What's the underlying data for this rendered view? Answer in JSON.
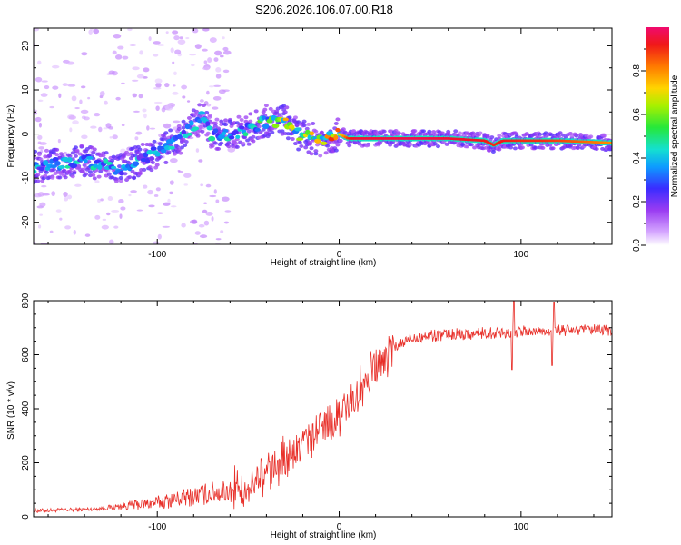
{
  "title": "S206.2026.106.07.00.R18",
  "chart_data": [
    {
      "type": "heatmap",
      "xlabel": "Height of straight line (km)",
      "ylabel": "Frequency (Hz)",
      "xlim": [
        -168,
        150
      ],
      "ylim": [
        -25,
        24
      ],
      "x_ticks": [
        "-100",
        "0",
        "100"
      ],
      "x_tick_values": [
        -100,
        0,
        100
      ],
      "y_ticks": [
        "20",
        "10",
        "0",
        "-10",
        "-20"
      ],
      "y_tick_values": [
        20,
        10,
        0,
        -10,
        -20
      ],
      "colorbar": {
        "label": "Normalized spectral amplitude",
        "ticks": [
          "0.0",
          "0.2",
          "0.4",
          "0.6",
          "0.8"
        ],
        "tick_values": [
          0.0,
          0.2,
          0.4,
          0.6,
          0.8
        ],
        "range": [
          0,
          1
        ]
      },
      "ridge": {
        "x": [
          -168,
          -140,
          -120,
          -100,
          -90,
          -80,
          -75,
          -70,
          -60,
          -50,
          -40,
          -35,
          -30,
          -25,
          -20,
          -15,
          -10,
          -5,
          0,
          5,
          10,
          20,
          40,
          60,
          80,
          85,
          90,
          100,
          110,
          120,
          150
        ],
        "y": [
          -7.5,
          -6,
          -8,
          -4,
          -2,
          2,
          4,
          0,
          0,
          1,
          3,
          2.5,
          3.5,
          0.5,
          -0.5,
          -1,
          -1.5,
          -1,
          0,
          -1,
          -1,
          -1,
          -1,
          -1,
          -1.5,
          -2.5,
          -1.5,
          -1.5,
          -1.5,
          -1.5,
          -2
        ],
        "amplitude": [
          0.35,
          0.35,
          0.35,
          0.3,
          0.35,
          0.4,
          0.45,
          0.35,
          0.4,
          0.4,
          0.45,
          0.5,
          0.6,
          0.5,
          0.55,
          0.55,
          0.6,
          0.65,
          0.7,
          0.9,
          0.95,
          0.95,
          0.97,
          0.95,
          0.92,
          0.9,
          0.92,
          0.9,
          0.9,
          0.88,
          0.8
        ]
      }
    },
    {
      "type": "line",
      "xlabel": "Height of straight line (km)",
      "ylabel": "SNR (10 * v/v)",
      "xlim": [
        -168,
        150
      ],
      "ylim": [
        0,
        800
      ],
      "x_ticks": [
        "-100",
        "0",
        "100"
      ],
      "x_tick_values": [
        -100,
        0,
        100
      ],
      "y_ticks": [
        "0",
        "200",
        "400",
        "600",
        "800"
      ],
      "y_tick_values": [
        0,
        200,
        400,
        600,
        800
      ],
      "color": "#e8302a",
      "trend": {
        "x": [
          -168,
          -140,
          -120,
          -100,
          -80,
          -60,
          -50,
          -40,
          -30,
          -20,
          -10,
          0,
          10,
          20,
          30,
          40,
          60,
          80,
          100,
          120,
          150
        ],
        "y": [
          20,
          25,
          35,
          45,
          65,
          85,
          105,
          150,
          210,
          260,
          320,
          370,
          450,
          540,
          620,
          665,
          675,
          680,
          685,
          690,
          690
        ]
      },
      "spikes": [
        {
          "x": 96,
          "y": 805
        },
        {
          "x": 95,
          "y": 545
        },
        {
          "x": 118,
          "y": 795
        },
        {
          "x": 117,
          "y": 560
        }
      ]
    }
  ]
}
